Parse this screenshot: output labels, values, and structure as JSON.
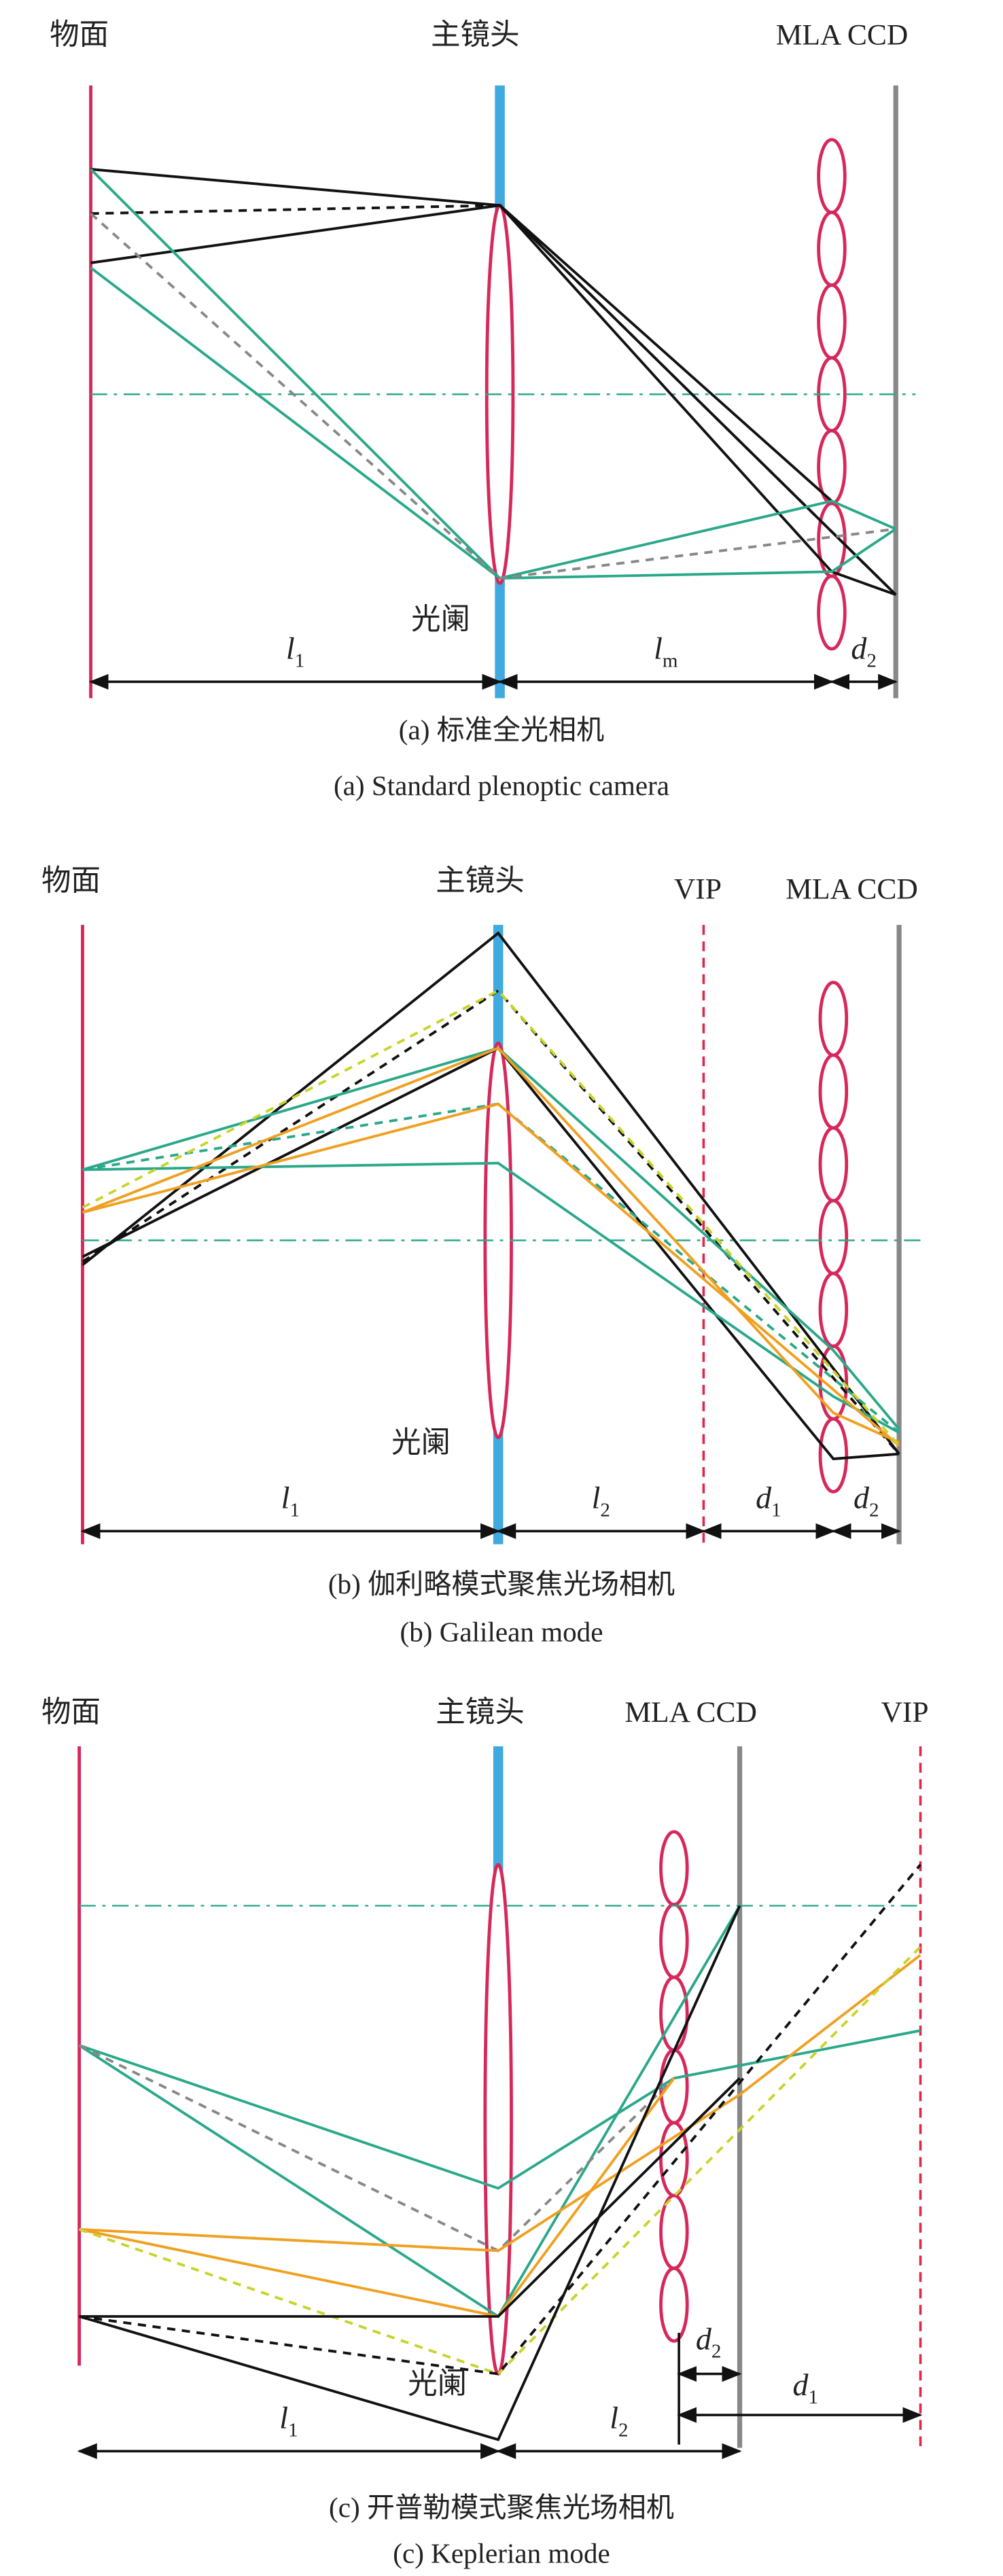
{
  "panels": [
    {
      "labels": {
        "object": "物面",
        "lens": "主镜头",
        "sensor": "MLA CCD",
        "stop": "光阑"
      },
      "dims": [
        {
          "main": "l",
          "sub": "1"
        },
        {
          "main": "l",
          "sub": "m"
        },
        {
          "main": "d",
          "sub": "2"
        }
      ],
      "caption_zh": "(a) 标准全光相机",
      "caption_en": "(a) Standard plenoptic camera"
    },
    {
      "labels": {
        "object": "物面",
        "lens": "主镜头",
        "vip": "VIP",
        "sensor": "MLA CCD",
        "stop": "光阑"
      },
      "dims": [
        {
          "main": "l",
          "sub": "1"
        },
        {
          "main": "l",
          "sub": "2"
        },
        {
          "main": "d",
          "sub": "1"
        },
        {
          "main": "d",
          "sub": "2"
        }
      ],
      "caption_zh": "(b) 伽利略模式聚焦光场相机",
      "caption_en": "(b) Galilean mode"
    },
    {
      "labels": {
        "object": "物面",
        "lens": "主镜头",
        "sensor": "MLA CCD",
        "vip": "VIP",
        "stop": "光阑"
      },
      "dims": [
        {
          "main": "l",
          "sub": "1"
        },
        {
          "main": "l",
          "sub": "2"
        },
        {
          "main": "d",
          "sub": "2"
        },
        {
          "main": "d",
          "sub": "1"
        }
      ],
      "caption_zh": "(c) 开普勒模式聚焦光场相机",
      "caption_en": "(c) Keplerian mode"
    }
  ]
}
